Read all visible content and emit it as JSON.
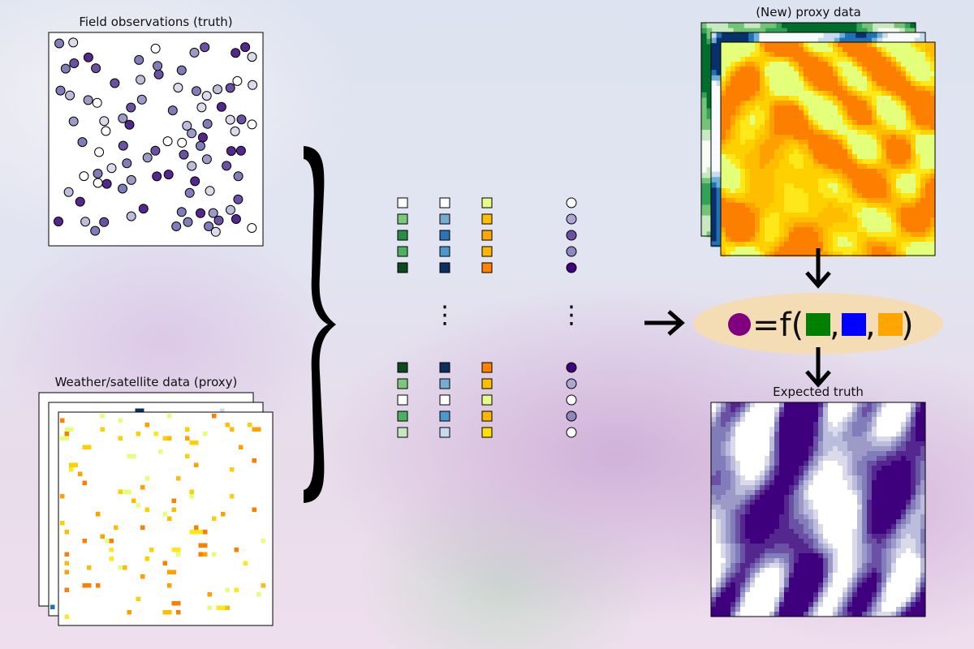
{
  "titles": {
    "field_observations": "Field observations (truth)",
    "weather_satellite": "Weather/satellite data (proxy)",
    "new_proxy": "(New) proxy data",
    "expected_truth": "Expected truth"
  },
  "formula": {
    "eq": "=f(",
    "comma": ",",
    "close": ")",
    "colors": {
      "target": "#800080",
      "green": "#008000",
      "blue": "#0000ff",
      "orange": "#ffa500"
    }
  },
  "table": {
    "dots": "⋮",
    "green_top": [
      "#ffffff",
      "#7bc77c",
      "#2b8c46",
      "#4daf5f",
      "#0b4a1e"
    ],
    "blue_top": [
      "#ffffff",
      "#74add1",
      "#2c74b5",
      "#4b98ca",
      "#0d2f60"
    ],
    "yellow_top": [
      "#e8fb8a",
      "#ffbf00",
      "#ffa800",
      "#ffb600",
      "#ff8200"
    ],
    "purple_top": [
      "#ffffff",
      "#aca6d1",
      "#6a51a3",
      "#8f87c0",
      "#3f007d"
    ],
    "green_bottom": [
      "#0b4a1e",
      "#7bc77c",
      "#ffffff",
      "#4daf5f",
      "#c6e8bf"
    ],
    "blue_bottom": [
      "#0d2f60",
      "#74add1",
      "#ffffff",
      "#4b98ca",
      "#c6dbef"
    ],
    "yellow_bottom": [
      "#ff8200",
      "#ffbf00",
      "#e8fb8a",
      "#ffb600",
      "#ffe000"
    ],
    "purple_bottom": [
      "#3f007d",
      "#aca6d1",
      "#ffffff",
      "#8f87c0",
      "#ffffff"
    ]
  },
  "palette": {
    "purples": [
      "#ffffff",
      "#dadaeb",
      "#bcbddc",
      "#9e9ac8",
      "#807dba",
      "#6a51a3",
      "#54278f",
      "#3f007d"
    ],
    "wistia": [
      "#e4ff7a",
      "#ffe81a",
      "#ffd000",
      "#ffbd00",
      "#ffa000",
      "#fc7f00"
    ],
    "greens": [
      "#f7fcf5",
      "#c7e9c0",
      "#74c476",
      "#31a354",
      "#006d2c"
    ],
    "blues": [
      "#f7fbff",
      "#c6dbef",
      "#6baed6",
      "#2171b5",
      "#08306b"
    ]
  }
}
